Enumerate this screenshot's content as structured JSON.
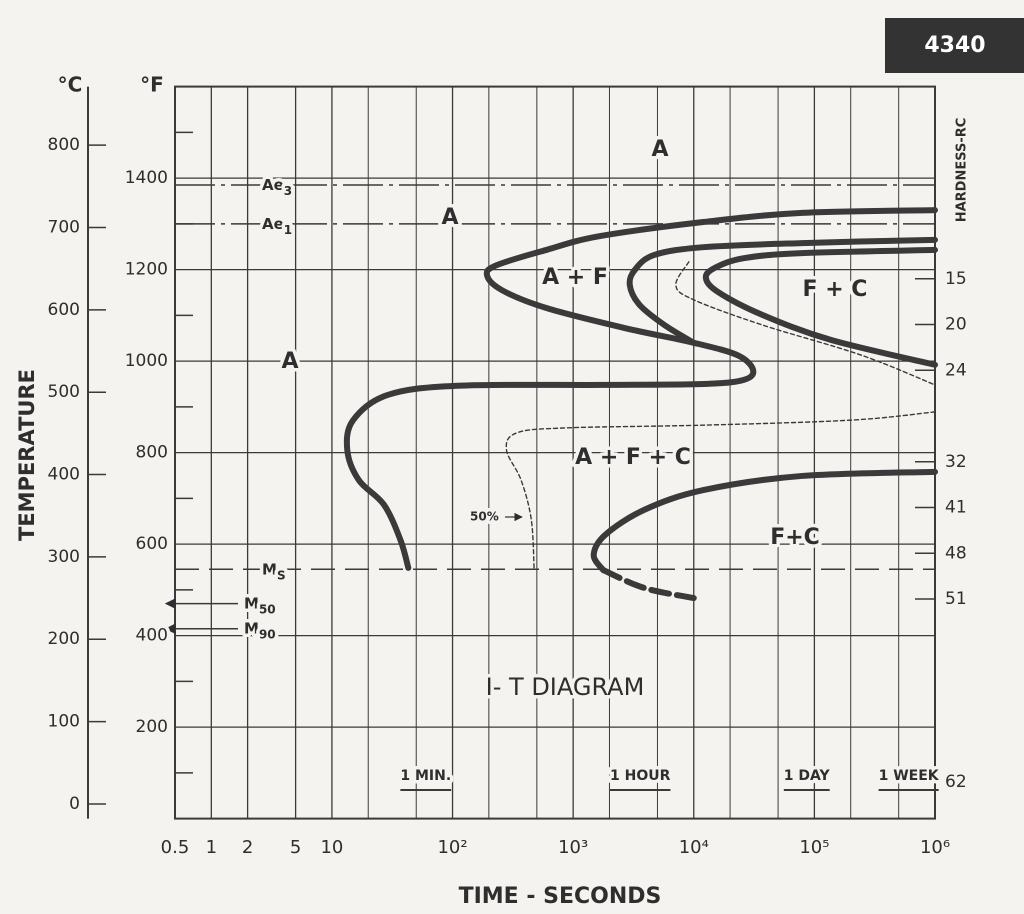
{
  "chart_data": {
    "type": "it-diagram",
    "badge": "4340",
    "title": "I- T DIAGRAM",
    "xlabel": "TIME - SECONDS",
    "ylabel": "TEMPERATURE",
    "yunit": "°F",
    "y2unit": "°C",
    "hardness_label": "HARDNESS-RC",
    "log_x": true,
    "grid": true,
    "color": "#3a3a3a",
    "xlim": [
      0.5,
      1000000
    ],
    "xticks": [
      0.5,
      1,
      2,
      5,
      10,
      {
        "value": 100,
        "label": "10²"
      },
      {
        "value": 1000,
        "label": "10³"
      },
      {
        "value": 10000,
        "label": "10⁴"
      },
      {
        "value": 100000,
        "label": "10⁵"
      },
      {
        "value": 1000000,
        "label": "10⁶"
      }
    ],
    "xminor": [
      20,
      50,
      200,
      500,
      2000,
      5000,
      20000,
      50000,
      200000,
      500000
    ],
    "ylim": [
      0,
      1600
    ],
    "yticks": [
      200,
      400,
      600,
      800,
      1000,
      1200,
      1400
    ],
    "yminor": [
      100,
      300,
      500,
      700,
      900,
      1100,
      1300,
      1500
    ],
    "y2lim": [
      -17.8,
      871.1
    ],
    "y2ticks": [
      0,
      100,
      200,
      300,
      400,
      500,
      600,
      700,
      800
    ],
    "hardness_ticks": [
      {
        "value": 1180,
        "label": "15"
      },
      {
        "value": 1080,
        "label": "20"
      },
      {
        "value": 980,
        "label": "24"
      },
      {
        "value": 780,
        "label": "32"
      },
      {
        "value": 680,
        "label": "41"
      },
      {
        "value": 580,
        "label": "48"
      },
      {
        "value": 480,
        "label": "51"
      },
      {
        "value": 80,
        "label": "62"
      }
    ],
    "critical_lines": [
      {
        "label": "Ae",
        "sub": "3",
        "value": 1385,
        "style": "dash-dot"
      },
      {
        "label": "Ae",
        "sub": "1",
        "value": 1300,
        "style": "dash-dot"
      },
      {
        "label": "M",
        "sub": "S",
        "value": 545,
        "style": "dashed"
      },
      {
        "label": "M",
        "sub": "50",
        "value": 470,
        "style": "arrow"
      },
      {
        "label": "M",
        "sub": "90",
        "value": 415,
        "style": "arrow"
      }
    ],
    "time_markers": [
      {
        "label": "1 MIN.",
        "value": 60
      },
      {
        "label": "1 HOUR",
        "value": 3600
      },
      {
        "label": "1 DAY",
        "value": 86400
      },
      {
        "label": "1 WEEK",
        "value": 604800
      }
    ],
    "regions": [
      "A",
      "A",
      "A",
      "A + F",
      "F + C",
      "A + F + C",
      "F+C"
    ],
    "curve_note": "50%",
    "curves": [
      {
        "style": "thick",
        "x": [
          1000000,
          79000,
          12000,
          1650,
          600,
          234,
          193,
          257,
          600,
          2700,
          10000,
          23000,
          31000,
          26000,
          12000,
          1840,
          110,
          29,
          15,
          13.4,
          16.7,
          27,
          37,
          43
        ],
        "y": [
          1330,
          1324,
          1304,
          1273,
          1243,
          1210,
          1188,
          1155,
          1116,
          1072,
          1040,
          1013,
          981,
          959,
          950,
          948,
          946,
          926,
          871,
          806,
          740,
          686,
          609,
          548
        ]
      },
      {
        "style": "thick",
        "x": [
          1000000,
          79000,
          12000,
          4700,
          3240,
          2950,
          3550,
          5700,
          10000
        ],
        "y": [
          1265,
          1258,
          1249,
          1232,
          1199,
          1166,
          1123,
          1079,
          1040
        ]
      },
      {
        "style": "thick",
        "x": [
          1000000,
          79000,
          26000,
          15000,
          12600,
          15900,
          37000,
          138000,
          1000000
        ],
        "y": [
          1243,
          1236,
          1225,
          1204,
          1182,
          1151,
          1101,
          1046,
          992
        ]
      },
      {
        "style": "thin-dashed",
        "x": [
          9100,
          7100,
          10000,
          37000,
          245000,
          1000000
        ],
        "y": [
          1217,
          1166,
          1134,
          1079,
          1013,
          948
        ]
      },
      {
        "style": "thin-dashed",
        "x": [
          1000000,
          203000,
          12000,
          870,
          340,
          280,
          370,
          450,
          475
        ],
        "y": [
          889,
          871,
          860,
          854,
          843,
          806,
          740,
          653,
          543
        ]
      },
      {
        "style": "thick",
        "x": [
          1000000,
          79000,
          12000,
          3900,
          1840,
          1480,
          1780
        ],
        "y": [
          758,
          749,
          718,
          675,
          620,
          576,
          543
        ]
      },
      {
        "style": "thick-dashed",
        "x": [
          1780,
          3900,
          10000
        ],
        "y": [
          543,
          504,
          482
        ]
      }
    ]
  }
}
